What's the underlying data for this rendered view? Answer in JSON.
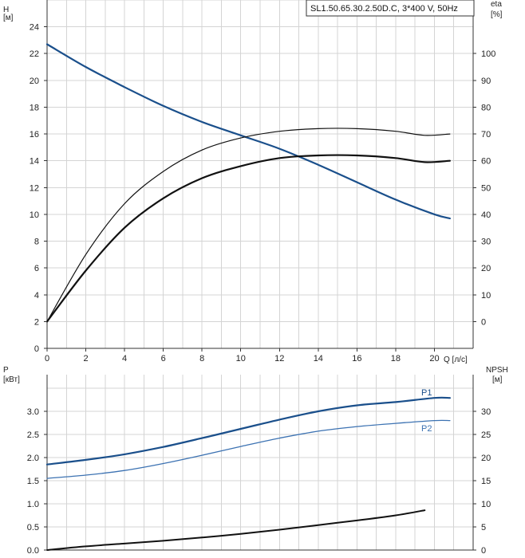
{
  "model_label": "SL1.50.65.30.2.50D.C, 3*400 V, 50Hz",
  "colors": {
    "pump_blue": "#1a4f8b",
    "p2_blue": "#3c72b2",
    "black": "#111111",
    "grid": "#d4d4d4"
  },
  "chart_data": [
    {
      "type": "line",
      "name": "head-efficiency",
      "xlabel": "Q [л/с]",
      "ylabel_left": [
        "H",
        "[м]"
      ],
      "ylabel_right": [
        "eta",
        "[%]"
      ],
      "xlim": [
        0,
        22
      ],
      "ylim_left": [
        0,
        26
      ],
      "ylim_right": [
        -10,
        120
      ],
      "x_ticks": [
        0,
        2,
        4,
        6,
        8,
        10,
        12,
        14,
        16,
        18,
        20
      ],
      "y_ticks_left": [
        0,
        2,
        4,
        6,
        8,
        10,
        12,
        14,
        16,
        18,
        20,
        22,
        24
      ],
      "y_ticks_right": [
        0,
        10,
        20,
        30,
        40,
        50,
        60,
        70,
        80,
        90,
        100
      ],
      "grid": true,
      "series": [
        {
          "key": "head",
          "axis": "left",
          "color": "#1a4f8b",
          "width": 2.2,
          "x": [
            0,
            2,
            4,
            6,
            8,
            10,
            12,
            14,
            16,
            18,
            20,
            20.8
          ],
          "y": [
            22.7,
            21.0,
            19.5,
            18.1,
            16.9,
            15.9,
            14.9,
            13.7,
            12.4,
            11.1,
            10.0,
            9.7
          ]
        },
        {
          "key": "eta-thin",
          "axis": "right",
          "color": "#111111",
          "width": 1.2,
          "x": [
            0,
            2,
            4,
            6,
            8,
            10,
            12,
            14,
            16,
            18,
            19.5,
            20.8
          ],
          "y": [
            0,
            25,
            44,
            56,
            64,
            68.5,
            71,
            72,
            72,
            71,
            69.5,
            70
          ]
        },
        {
          "key": "eta-thick",
          "axis": "right",
          "color": "#111111",
          "width": 2.2,
          "x": [
            0,
            2,
            4,
            6,
            8,
            10,
            12,
            14,
            16,
            18,
            19.5,
            20.8
          ],
          "y": [
            0,
            19,
            35,
            46,
            53.5,
            58,
            61,
            62,
            62,
            61,
            59.5,
            60
          ]
        }
      ]
    },
    {
      "type": "line",
      "name": "power-npsh",
      "ylabel_left": [
        "P",
        "[кВт]"
      ],
      "ylabel_right": [
        "NPSH",
        "[м]"
      ],
      "xlim": [
        0,
        22
      ],
      "ylim_left": [
        0,
        3.5
      ],
      "ylim_right": [
        0,
        35
      ],
      "y_ticks_left": [
        "0.0",
        "0.5",
        "1.0",
        "1.5",
        "2.0",
        "2.5",
        "3.0"
      ],
      "y_ticks_right": [
        0,
        5,
        10,
        15,
        20,
        25,
        30
      ],
      "grid": true,
      "series": [
        {
          "key": "P1",
          "name": "P1",
          "axis": "left",
          "color": "#1a4f8b",
          "width": 2.2,
          "x": [
            0,
            2,
            4,
            6,
            8,
            10,
            12,
            14,
            16,
            18,
            20,
            20.8
          ],
          "y": [
            1.85,
            1.95,
            2.07,
            2.23,
            2.42,
            2.62,
            2.82,
            3.0,
            3.13,
            3.2,
            3.29,
            3.29
          ]
        },
        {
          "key": "P2",
          "name": "P2",
          "axis": "left",
          "color": "#3c72b2",
          "width": 1.3,
          "x": [
            0,
            2,
            4,
            6,
            8,
            10,
            12,
            14,
            16,
            18,
            20,
            20.8
          ],
          "y": [
            1.55,
            1.62,
            1.72,
            1.87,
            2.05,
            2.24,
            2.42,
            2.57,
            2.67,
            2.74,
            2.8,
            2.8
          ]
        },
        {
          "key": "NPSH",
          "axis": "right",
          "color": "#111111",
          "width": 2.0,
          "x": [
            0,
            2,
            4,
            6,
            8,
            10,
            12,
            14,
            16,
            18,
            19.5
          ],
          "y": [
            0,
            0.8,
            1.4,
            2.0,
            2.7,
            3.5,
            4.4,
            5.4,
            6.4,
            7.5,
            8.6
          ]
        }
      ]
    }
  ]
}
